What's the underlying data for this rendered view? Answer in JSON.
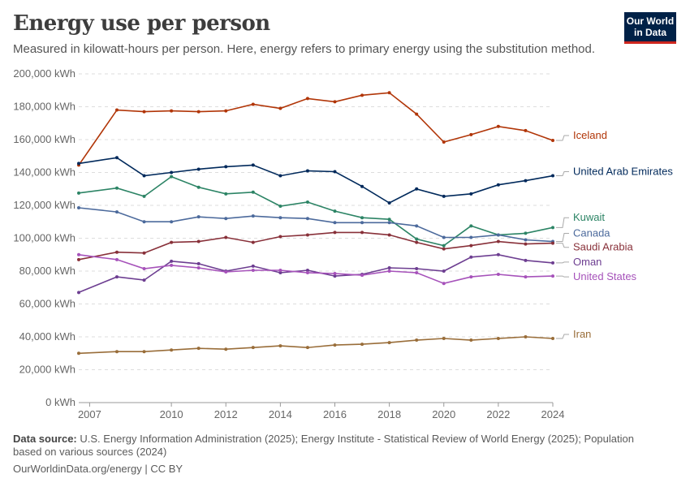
{
  "header": {
    "title": "Energy use per person",
    "subtitle": "Measured in kilowatt-hours per person. Here, energy refers to primary energy using the substitution method.",
    "logo_line1": "Our World",
    "logo_line2": "in Data"
  },
  "footer": {
    "source_label": "Data source:",
    "source_text": "U.S. Energy Information Administration (2025); Energy Institute - Statistical Review of World Energy (2025); Population based on various sources (2024)",
    "link_text": "OurWorldinData.org/energy | CC BY"
  },
  "chart_data": {
    "type": "line",
    "title": "Energy use per person",
    "ylabel": "",
    "xlabel": "",
    "ylim": [
      0,
      200000
    ],
    "xlim": [
      2006.6,
      2024
    ],
    "grid": true,
    "y_ticks": [
      0,
      20000,
      40000,
      60000,
      80000,
      100000,
      120000,
      140000,
      160000,
      180000,
      200000
    ],
    "y_tick_labels": [
      "0 kWh",
      "20,000 kWh",
      "40,000 kWh",
      "60,000 kWh",
      "80,000 kWh",
      "100,000 kWh",
      "120,000 kWh",
      "140,000 kWh",
      "160,000 kWh",
      "180,000 kWh",
      "200,000 kWh"
    ],
    "x_ticks": [
      2007,
      2010,
      2012,
      2014,
      2016,
      2018,
      2020,
      2022,
      2024
    ],
    "x_tick_labels": [
      "2007",
      "2010",
      "2012",
      "2014",
      "2016",
      "2018",
      "2020",
      "2022",
      "2024"
    ],
    "x": [
      2006.6,
      2008,
      2009,
      2010,
      2011,
      2012,
      2013,
      2014,
      2015,
      2016,
      2017,
      2018,
      2019,
      2020,
      2021,
      2022,
      2023,
      2024
    ],
    "series": [
      {
        "name": "Iceland",
        "color": "#b13507",
        "label_value": 160500,
        "values": [
          144500,
          178000,
          177000,
          177500,
          177000,
          177500,
          181500,
          179000,
          185000,
          183000,
          187000,
          188500,
          175500,
          158500,
          163000,
          168000,
          165500,
          159500
        ]
      },
      {
        "name": "United Arab Emirates",
        "color": "#00295b",
        "label_value": 138500,
        "values": [
          145500,
          149000,
          138000,
          140000,
          142000,
          143500,
          144500,
          138000,
          141000,
          140500,
          131500,
          121500,
          130000,
          125500,
          127000,
          132500,
          135000,
          138000
        ]
      },
      {
        "name": "Kuwait",
        "color": "#2c8465",
        "label_value": 110500,
        "values": [
          127500,
          130500,
          125500,
          137500,
          131000,
          127000,
          128000,
          119500,
          122000,
          116500,
          112500,
          111500,
          99500,
          95500,
          107500,
          102000,
          103000,
          106500
        ]
      },
      {
        "name": "Canada",
        "color": "#4c6a9c",
        "label_value": 101000,
        "values": [
          118500,
          116000,
          110000,
          110000,
          113000,
          112000,
          113500,
          112500,
          112000,
          109500,
          109500,
          109500,
          107500,
          100500,
          100500,
          102000,
          99000,
          98000
        ]
      },
      {
        "name": "Saudi Arabia",
        "color": "#883039",
        "label_value": 92500,
        "values": [
          87000,
          91500,
          91000,
          97500,
          98000,
          100500,
          97500,
          101000,
          102000,
          103500,
          103500,
          102000,
          97500,
          93500,
          95500,
          98000,
          96500,
          97000
        ]
      },
      {
        "name": "Oman",
        "color": "#6d3e91",
        "label_value": 83500,
        "values": [
          67000,
          76500,
          74500,
          86000,
          84500,
          80000,
          83000,
          79000,
          80500,
          77000,
          78000,
          82000,
          81500,
          80000,
          88500,
          90000,
          86500,
          85000
        ]
      },
      {
        "name": "United States",
        "color": "#a652ba",
        "label_value": 74500,
        "values": [
          90000,
          87000,
          81500,
          83500,
          82000,
          79500,
          80500,
          80500,
          79000,
          78500,
          77500,
          80000,
          79000,
          72500,
          76500,
          78000,
          76500,
          77000
        ]
      },
      {
        "name": "Iran",
        "color": "#996d39",
        "label_value": 39500,
        "values": [
          30000,
          31000,
          31000,
          32000,
          33000,
          32500,
          33500,
          34500,
          33500,
          35000,
          35500,
          36500,
          38000,
          39000,
          38000,
          39000,
          40000,
          39000
        ]
      }
    ]
  }
}
